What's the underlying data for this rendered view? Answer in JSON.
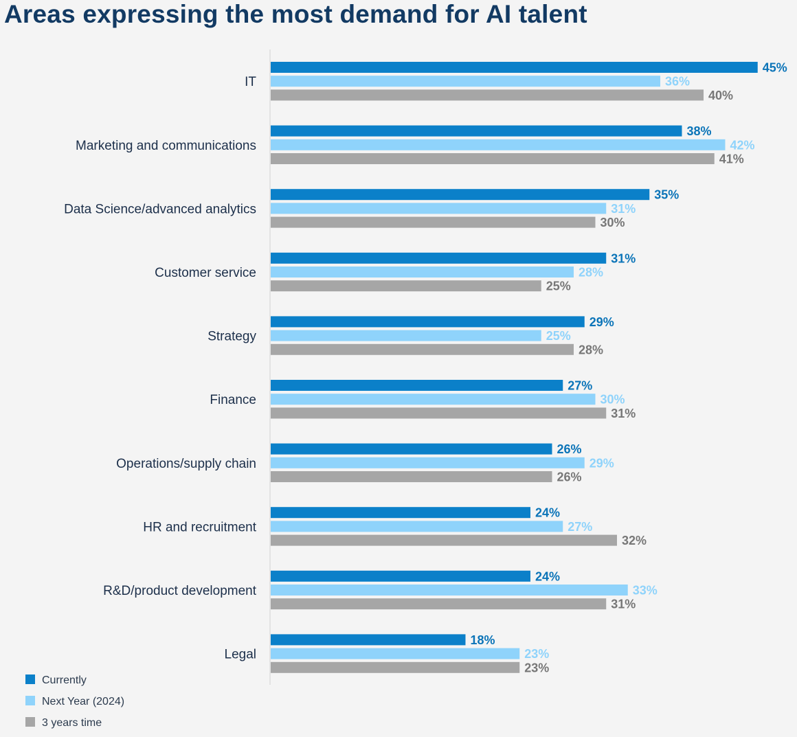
{
  "chart_data": {
    "type": "bar",
    "orientation": "horizontal",
    "title": "Areas expressing the most demand for AI talent",
    "categories": [
      "IT",
      "Marketing and communications",
      "Data Science/advanced analytics",
      "Customer service",
      "Strategy",
      "Finance",
      "Operations/supply chain",
      "HR and recruitment",
      "R&D/product development",
      "Legal"
    ],
    "series": [
      {
        "name": "Currently",
        "color": "#0b80c9",
        "label_color": "#0b74b8",
        "values": [
          45,
          38,
          35,
          31,
          29,
          27,
          26,
          24,
          24,
          18
        ]
      },
      {
        "name": "Next Year (2024)",
        "color": "#8fd3fb",
        "label_color": "#8fd3fb",
        "values": [
          36,
          42,
          31,
          28,
          25,
          30,
          29,
          27,
          33,
          23
        ]
      },
      {
        "name": "3 years time",
        "color": "#a6a6a6",
        "label_color": "#777777",
        "values": [
          40,
          41,
          30,
          25,
          28,
          31,
          26,
          32,
          31,
          23
        ]
      }
    ],
    "value_suffix": "%",
    "xlabel": "",
    "ylabel": "",
    "grid": false,
    "legend_position": "bottom-left"
  }
}
